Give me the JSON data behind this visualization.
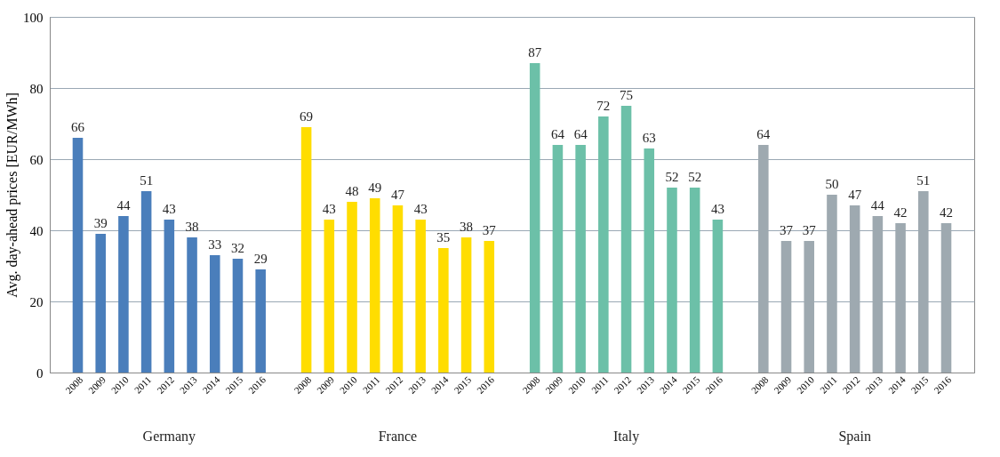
{
  "chart_data": {
    "type": "bar",
    "ylabel": "Avg. day-ahead prices [EUR/MWh]",
    "categories": [
      "2008",
      "2009",
      "2010",
      "2011",
      "2012",
      "2013",
      "2014",
      "2015",
      "2016",
      null,
      "2008",
      "2009",
      "2010",
      "2011",
      "2012",
      "2013",
      "2014",
      "2015",
      "2016",
      null,
      "2008",
      "2009",
      "2010",
      "2011",
      "2012",
      "2013",
      "2014",
      "2015",
      "2016",
      null,
      "2008",
      "2009",
      "2010",
      "2011",
      "2012",
      "2013",
      "2014",
      "2015",
      "2016"
    ],
    "series": [
      {
        "color": "#4a7ebb",
        "values": [
          66,
          39,
          44,
          51,
          43,
          38,
          33,
          32,
          29,
          null,
          null,
          null,
          null,
          null,
          null,
          null,
          null,
          null,
          null,
          null,
          null,
          null,
          null,
          null,
          null,
          null,
          null,
          null,
          null,
          null,
          null,
          null,
          null,
          null,
          null,
          null,
          null,
          null,
          null
        ]
      },
      {
        "color": "#ffdd00",
        "values": [
          null,
          null,
          null,
          null,
          null,
          null,
          null,
          null,
          null,
          null,
          69,
          43,
          48,
          49,
          47,
          43,
          35,
          38,
          37,
          null,
          null,
          null,
          null,
          null,
          null,
          null,
          null,
          null,
          null,
          null,
          null,
          null,
          null,
          null,
          null,
          null,
          null,
          null,
          null
        ]
      },
      {
        "color": "#6cc0a8",
        "values": [
          null,
          null,
          null,
          null,
          null,
          null,
          null,
          null,
          null,
          null,
          null,
          null,
          null,
          null,
          null,
          null,
          null,
          null,
          null,
          null,
          87,
          64,
          64,
          72,
          75,
          63,
          52,
          52,
          43,
          null,
          null,
          null,
          null,
          null,
          null,
          null,
          null,
          null,
          null
        ]
      },
      {
        "color": "#9ea9b0",
        "values": [
          null,
          null,
          null,
          null,
          null,
          null,
          null,
          null,
          null,
          null,
          null,
          null,
          null,
          null,
          null,
          null,
          null,
          null,
          null,
          null,
          null,
          null,
          null,
          null,
          null,
          null,
          null,
          null,
          null,
          null,
          64,
          37,
          37,
          50,
          47,
          44,
          42,
          51,
          42
        ]
      }
    ],
    "ylim": [
      0,
      100
    ],
    "yticks": [
      0,
      20,
      40,
      60,
      80,
      100
    ],
    "grid": "y",
    "data_labels": true,
    "annotations": [
      "Germany",
      "France",
      "Italy",
      "Spain"
    ]
  }
}
